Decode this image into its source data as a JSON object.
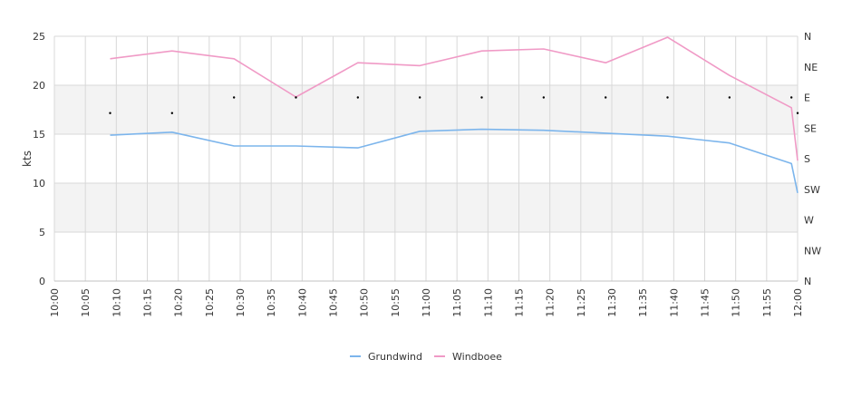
{
  "chart_data": {
    "type": "line",
    "ylabel": "kts",
    "ylim": [
      0,
      25
    ],
    "y_ticks": [
      "0",
      "5",
      "10",
      "15",
      "20",
      "25"
    ],
    "x_ticks": [
      "10:00",
      "10:05",
      "10:10",
      "10:15",
      "10:20",
      "10:25",
      "10:30",
      "10:35",
      "10:40",
      "10:45",
      "10:50",
      "10:55",
      "11:00",
      "11:05",
      "11:10",
      "11:15",
      "11:20",
      "11:25",
      "11:30",
      "11:35",
      "11:40",
      "11:45",
      "11:50",
      "11:55",
      "12:00"
    ],
    "x_range_minutes": [
      0,
      120
    ],
    "y2_ticks": [
      "N",
      "NW",
      "W",
      "SW",
      "S",
      "SE",
      "E",
      "NE",
      "N"
    ],
    "y2_range_degrees": [
      0,
      360
    ],
    "grid": true,
    "legend_position": "bottom",
    "colors": {
      "grundwind": "#7cb5ec",
      "windboee": "#f09ac6",
      "band": "#f3f3f3",
      "grid": "#d8d8d8"
    },
    "series": [
      {
        "name": "Grundwind",
        "x": [
          "10:09",
          "10:19",
          "10:29",
          "10:39",
          "10:49",
          "10:59",
          "11:09",
          "11:19",
          "11:29",
          "11:39",
          "11:49",
          "11:59",
          "12:00"
        ],
        "values": [
          14.9,
          15.2,
          13.8,
          13.8,
          13.6,
          15.3,
          15.5,
          15.4,
          15.1,
          14.8,
          14.1,
          12.0,
          9.0
        ]
      },
      {
        "name": "Windboee",
        "x": [
          "10:09",
          "10:19",
          "10:29",
          "10:39",
          "10:49",
          "10:59",
          "11:09",
          "11:19",
          "11:29",
          "11:39",
          "11:49",
          "11:59",
          "12:00"
        ],
        "values": [
          22.7,
          23.5,
          22.7,
          18.8,
          22.3,
          22.0,
          23.5,
          23.7,
          22.3,
          24.9,
          21.0,
          17.7,
          12.3
        ]
      }
    ],
    "direction_points": {
      "x": [
        "10:09",
        "10:19",
        "10:29",
        "10:39",
        "10:49",
        "10:59",
        "11:09",
        "11:19",
        "11:29",
        "11:39",
        "11:49",
        "11:59",
        "12:00"
      ],
      "degrees": [
        247,
        247,
        270,
        270,
        270,
        270,
        270,
        270,
        270,
        270,
        270,
        270,
        247
      ]
    }
  }
}
